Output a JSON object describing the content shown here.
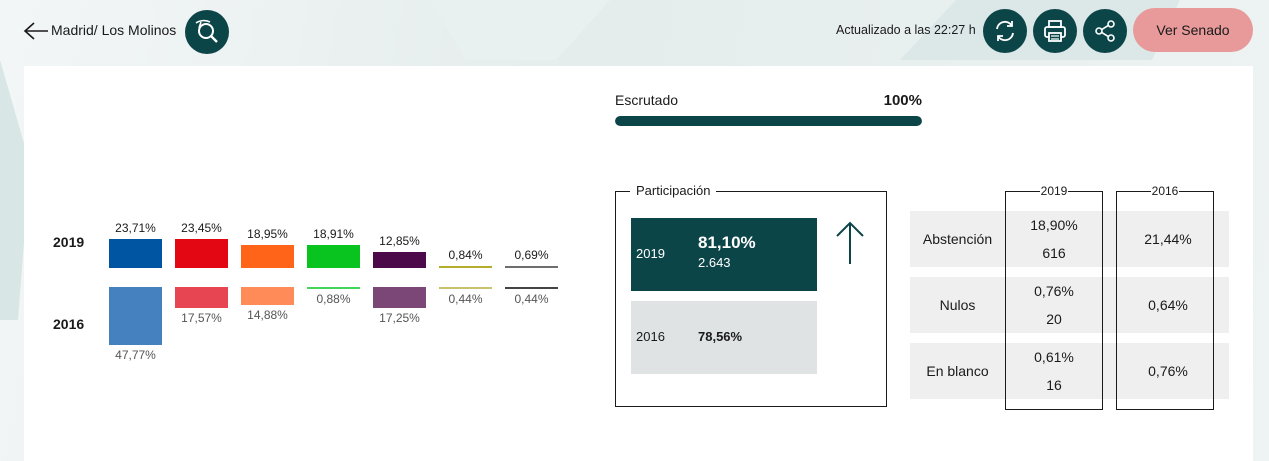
{
  "header": {
    "breadcrumb": "Madrid/ Los Molinos",
    "updated": "Actualizado a las 22:27 h",
    "senado_button": "Ver Senado"
  },
  "colors": {
    "accent": "#0c4548",
    "senado": "#e79a99"
  },
  "results": {
    "year_2019_label": "2019",
    "year_2016_label": "2016",
    "parties": [
      {
        "color_2019": "#0055a3",
        "color_2016": "#4580bf",
        "pct_2019": "23,71%",
        "pct_2016": "47,77%",
        "value_2019": 23.71,
        "value_2016": 47.77
      },
      {
        "color_2019": "#e30613",
        "color_2016": "#e84552",
        "pct_2019": "23,45%",
        "pct_2016": "17,57%",
        "value_2019": 23.45,
        "value_2016": 17.57
      },
      {
        "color_2019": "#ff6418",
        "color_2016": "#ff8c58",
        "pct_2019": "18,95%",
        "pct_2016": "14,88%",
        "value_2019": 18.95,
        "value_2016": 14.88
      },
      {
        "color_2019": "#09c31e",
        "color_2016": "#45d45a",
        "pct_2019": "18,91%",
        "pct_2016": "0,88%",
        "value_2019": 18.91,
        "value_2016": 0.88
      },
      {
        "color_2019": "#4d0a4b",
        "color_2016": "#7a4777",
        "pct_2019": "12,85%",
        "pct_2016": "17,25%",
        "value_2019": 12.85,
        "value_2016": 17.25
      },
      {
        "color_2019": "#b5ae2d",
        "color_2016": "#c8c26a",
        "pct_2019": "0,84%",
        "pct_2016": "0,44%",
        "value_2019": 0.84,
        "value_2016": 0.44
      },
      {
        "color_2019": "#6e6e6e",
        "color_2016": "#444444",
        "pct_2019": "0,69%",
        "pct_2016": "0,44%",
        "value_2019": 0.69,
        "value_2016": 0.44
      }
    ]
  },
  "escrutado": {
    "label": "Escrutado",
    "value": "100%",
    "fraction": 1.0
  },
  "participacion": {
    "title": "Participación",
    "y2019": {
      "year": "2019",
      "pct": "81,10%",
      "votes": "2.643"
    },
    "y2016": {
      "year": "2016",
      "pct": "78,56%"
    }
  },
  "stats": {
    "col_2019": "2019",
    "col_2016": "2016",
    "rows": [
      {
        "label": "Abstención",
        "pct_2019": "18,90%",
        "count_2019": "616",
        "pct_2016": "21,44%"
      },
      {
        "label": "Nulos",
        "pct_2019": "0,76%",
        "count_2019": "20",
        "pct_2016": "0,64%"
      },
      {
        "label": "En blanco",
        "pct_2019": "0,61%",
        "count_2019": "16",
        "pct_2016": "0,76%"
      }
    ]
  }
}
